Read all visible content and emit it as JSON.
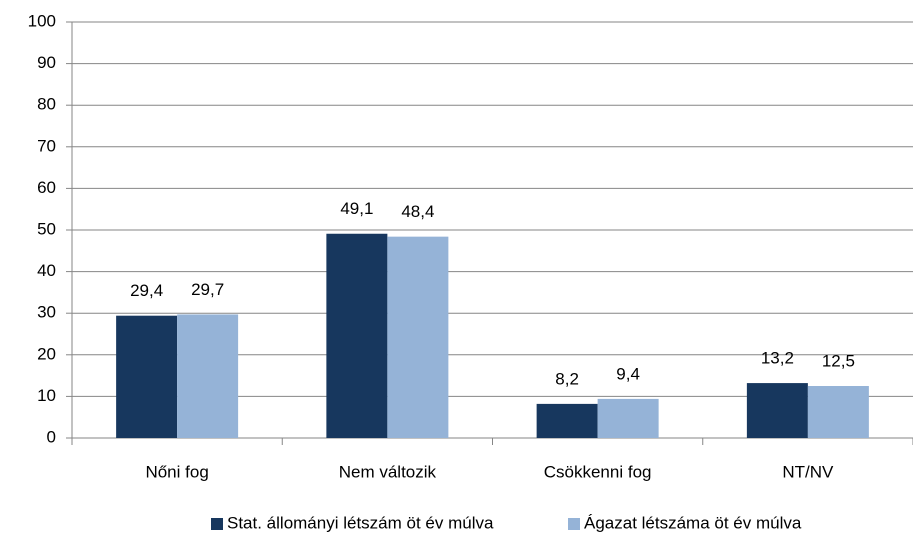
{
  "chart_data": {
    "type": "bar",
    "categories": [
      "Nőni fog",
      "Nem változik",
      "Csökkenni fog",
      "NT/NV"
    ],
    "series": [
      {
        "name": "Stat. állományi létszám öt év múlva",
        "color": "#17375e",
        "values": [
          29.4,
          49.1,
          8.2,
          13.2
        ],
        "value_labels": [
          "29,4",
          "49,1",
          "8,2",
          "13,2"
        ]
      },
      {
        "name": "Ágazat létszáma öt év múlva",
        "color": "#95b3d7",
        "values": [
          29.7,
          48.4,
          9.4,
          12.5
        ],
        "value_labels": [
          "29,7",
          "48,4",
          "9,4",
          "12,5"
        ]
      }
    ],
    "ylim": [
      0,
      100
    ],
    "yticks": [
      0,
      10,
      20,
      30,
      40,
      50,
      60,
      70,
      80,
      90,
      100
    ],
    "grid": true,
    "legend": "bottom"
  }
}
